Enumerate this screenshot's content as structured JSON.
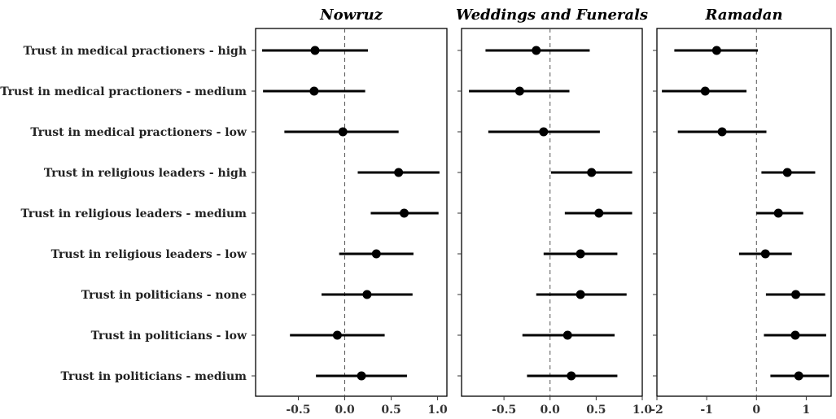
{
  "chart_data": {
    "type": "scatter",
    "subtype": "coefficient-plot",
    "categories": [
      "Trust in medical practioners - high",
      "Trust in medical practioners - medium",
      "Trust in medical practioners - low",
      "Trust in religious leaders - high",
      "Trust in religious leaders - medium",
      "Trust in religious leaders - low",
      "Trust in politicians - none",
      "Trust in politicians - low",
      "Trust in politicians - medium"
    ],
    "reference_line": 0,
    "grid": false,
    "panels": [
      {
        "title": "Nowruz",
        "xlim": [
          -0.96,
          1.1
        ],
        "ticks": [
          -0.5,
          0.0,
          0.5,
          1.0
        ],
        "tick_labels": [
          "-0.5",
          "0.0",
          "0.5",
          "1.0"
        ],
        "estimates": [
          -0.32,
          -0.33,
          -0.02,
          0.58,
          0.64,
          0.34,
          0.24,
          -0.08,
          0.18
        ],
        "lower": [
          -0.89,
          -0.88,
          -0.65,
          0.14,
          0.28,
          -0.06,
          -0.25,
          -0.59,
          -0.31
        ],
        "upper": [
          0.25,
          0.22,
          0.58,
          1.02,
          1.01,
          0.74,
          0.73,
          0.43,
          0.67
        ]
      },
      {
        "title": "Weddings and Funerals",
        "xlim": [
          -0.96,
          1.0
        ],
        "ticks": [
          -0.5,
          0.0,
          0.5,
          1.0
        ],
        "tick_labels": [
          "-0.5",
          "0.0",
          "0.5",
          "1.0"
        ],
        "estimates": [
          -0.15,
          -0.33,
          -0.07,
          0.45,
          0.53,
          0.33,
          0.33,
          0.19,
          0.23
        ],
        "lower": [
          -0.7,
          -0.88,
          -0.67,
          0.01,
          0.16,
          -0.07,
          -0.15,
          -0.3,
          -0.25
        ],
        "upper": [
          0.43,
          0.21,
          0.54,
          0.89,
          0.89,
          0.73,
          0.83,
          0.7,
          0.73
        ]
      },
      {
        "title": "Ramadan",
        "xlim": [
          -2.0,
          1.5
        ],
        "ticks": [
          -2,
          -1,
          0,
          1
        ],
        "tick_labels": [
          "-2",
          "-1",
          "0",
          "1"
        ],
        "estimates": [
          -0.8,
          -1.03,
          -0.69,
          0.62,
          0.44,
          0.18,
          0.79,
          0.78,
          0.85
        ],
        "lower": [
          -1.65,
          -1.9,
          -1.58,
          0.1,
          0.0,
          -0.35,
          0.19,
          0.15,
          0.28
        ],
        "upper": [
          0.03,
          -0.2,
          0.2,
          1.18,
          0.94,
          0.71,
          1.38,
          1.4,
          1.46
        ]
      }
    ]
  }
}
